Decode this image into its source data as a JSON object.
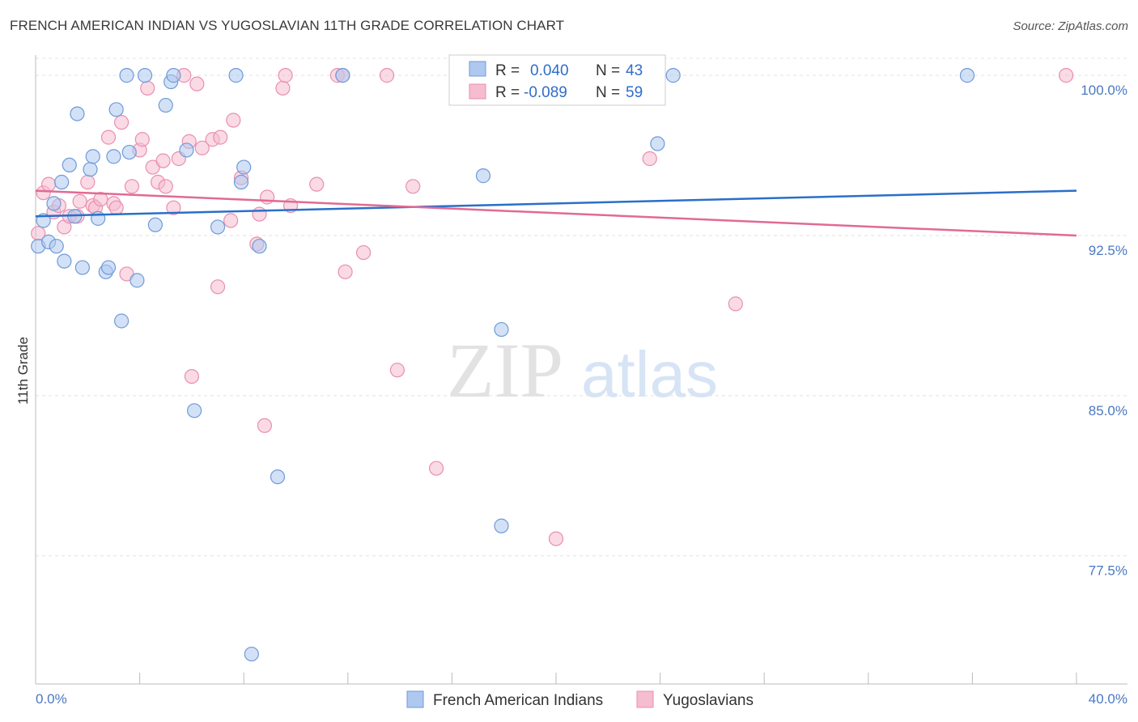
{
  "title": "FRENCH AMERICAN INDIAN VS YUGOSLAVIAN 11TH GRADE CORRELATION CHART",
  "source": "Source: ZipAtlas.com",
  "watermark": {
    "zip": "ZIP",
    "atlas": "atlas"
  },
  "legend": {
    "r_label": "R =",
    "n_label": "N =",
    "rows": [
      {
        "r": "0.040",
        "n": "43"
      },
      {
        "r": "-0.089",
        "n": "59"
      }
    ]
  },
  "colors": {
    "blue_fill": "#aec8f0",
    "blue_stroke": "#6f9ad8",
    "blue_line": "#2a6fc9",
    "pink_fill": "#f6bccf",
    "pink_stroke": "#e98fae",
    "pink_line": "#e06a96"
  },
  "chart_data": {
    "type": "scatter",
    "title": "FRENCH AMERICAN INDIAN VS YUGOSLAVIAN 11TH GRADE CORRELATION CHART",
    "xlabel": "",
    "ylabel": "11th Grade",
    "xlim": [
      0,
      40
    ],
    "ylim": [
      71.5,
      100.8
    ],
    "x_tick_labels": [
      "0.0%",
      "40.0%"
    ],
    "y_ticks": [
      77.5,
      85.0,
      92.5,
      100.0
    ],
    "y_tick_labels": [
      "77.5%",
      "85.0%",
      "92.5%",
      "100.0%"
    ],
    "grid": true,
    "legend_position": "top-center",
    "series": [
      {
        "name": "French American Indians",
        "color": "blue",
        "trend": [
          [
            0,
            93.4
          ],
          [
            40,
            94.6
          ]
        ],
        "points": [
          [
            0.1,
            92.0
          ],
          [
            0.3,
            93.2
          ],
          [
            0.5,
            92.2
          ],
          [
            0.7,
            94.0
          ],
          [
            0.8,
            92.0
          ],
          [
            1.0,
            95.0
          ],
          [
            1.1,
            91.3
          ],
          [
            1.3,
            95.8
          ],
          [
            1.5,
            93.4
          ],
          [
            1.6,
            98.2
          ],
          [
            1.8,
            91.0
          ],
          [
            2.1,
            95.6
          ],
          [
            2.2,
            96.2
          ],
          [
            2.4,
            93.3
          ],
          [
            2.7,
            90.8
          ],
          [
            2.8,
            91.0
          ],
          [
            3.0,
            96.2
          ],
          [
            3.1,
            98.4
          ],
          [
            3.3,
            88.5
          ],
          [
            3.5,
            100.0
          ],
          [
            3.6,
            96.4
          ],
          [
            3.9,
            90.4
          ],
          [
            4.2,
            100.0
          ],
          [
            4.6,
            93.0
          ],
          [
            5.0,
            98.6
          ],
          [
            5.2,
            99.7
          ],
          [
            5.3,
            100.0
          ],
          [
            5.8,
            96.5
          ],
          [
            6.1,
            84.3
          ],
          [
            7.0,
            92.9
          ],
          [
            7.7,
            100.0
          ],
          [
            7.9,
            95.0
          ],
          [
            8.0,
            95.7
          ],
          [
            8.3,
            72.9
          ],
          [
            8.6,
            92.0
          ],
          [
            9.3,
            81.2
          ],
          [
            11.8,
            100.0
          ],
          [
            17.2,
            95.3
          ],
          [
            17.9,
            88.1
          ],
          [
            17.9,
            78.9
          ],
          [
            23.9,
            96.8
          ],
          [
            24.5,
            100.0
          ],
          [
            35.8,
            100.0
          ]
        ]
      },
      {
        "name": "Yugoslavians",
        "color": "pink",
        "trend": [
          [
            0,
            94.6
          ],
          [
            40,
            92.5
          ]
        ],
        "points": [
          [
            0.1,
            92.6
          ],
          [
            0.3,
            94.5
          ],
          [
            0.5,
            94.9
          ],
          [
            0.7,
            93.6
          ],
          [
            0.9,
            93.9
          ],
          [
            1.1,
            92.9
          ],
          [
            1.3,
            93.4
          ],
          [
            1.6,
            93.4
          ],
          [
            1.7,
            94.1
          ],
          [
            2.0,
            95.0
          ],
          [
            2.2,
            93.9
          ],
          [
            2.3,
            93.8
          ],
          [
            2.5,
            94.2
          ],
          [
            2.8,
            97.1
          ],
          [
            3.0,
            94.0
          ],
          [
            3.1,
            93.8
          ],
          [
            3.3,
            97.8
          ],
          [
            3.5,
            90.7
          ],
          [
            3.7,
            94.8
          ],
          [
            4.0,
            96.5
          ],
          [
            4.1,
            97.0
          ],
          [
            4.3,
            99.4
          ],
          [
            4.5,
            95.7
          ],
          [
            4.7,
            95.0
          ],
          [
            4.9,
            96.0
          ],
          [
            5.0,
            94.8
          ],
          [
            5.3,
            93.8
          ],
          [
            5.5,
            96.1
          ],
          [
            5.7,
            100.0
          ],
          [
            5.9,
            96.9
          ],
          [
            6.0,
            85.9
          ],
          [
            6.2,
            99.6
          ],
          [
            6.4,
            96.6
          ],
          [
            6.8,
            97.0
          ],
          [
            7.0,
            90.1
          ],
          [
            7.1,
            97.1
          ],
          [
            7.5,
            93.2
          ],
          [
            7.6,
            97.9
          ],
          [
            7.9,
            95.2
          ],
          [
            8.5,
            92.1
          ],
          [
            8.6,
            93.5
          ],
          [
            8.8,
            83.6
          ],
          [
            8.9,
            94.3
          ],
          [
            9.5,
            99.4
          ],
          [
            9.6,
            100.0
          ],
          [
            9.8,
            93.9
          ],
          [
            10.8,
            94.9
          ],
          [
            11.6,
            100.0
          ],
          [
            11.8,
            100.0
          ],
          [
            11.9,
            90.8
          ],
          [
            12.6,
            91.7
          ],
          [
            13.5,
            100.0
          ],
          [
            13.9,
            86.2
          ],
          [
            14.5,
            94.8
          ],
          [
            15.4,
            81.6
          ],
          [
            20.0,
            78.3
          ],
          [
            23.6,
            96.1
          ],
          [
            26.9,
            89.3
          ],
          [
            39.6,
            100.0
          ]
        ]
      }
    ]
  }
}
